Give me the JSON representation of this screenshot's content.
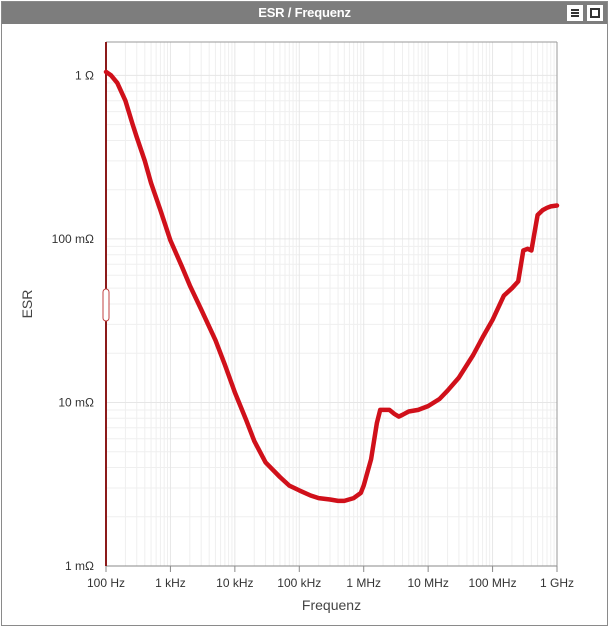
{
  "window": {
    "title": "ESR / Frequenz",
    "menu_icon": "hamburger-menu-icon",
    "maximize_icon": "maximize-icon"
  },
  "colors": {
    "titlebar": "#7d7d7d",
    "series": "#d0101a",
    "grid": "#e6e6e6",
    "axis": "#8a8a8a"
  },
  "chart_data": {
    "type": "line",
    "title": "ESR / Frequenz",
    "xlabel": "Frequenz",
    "ylabel": "ESR",
    "x_scale": "log",
    "y_scale": "log",
    "xlim": [
      100,
      1000000000
    ],
    "ylim": [
      0.001,
      1.6
    ],
    "grid": true,
    "x_ticks": [
      {
        "value": 100,
        "label": "100 Hz"
      },
      {
        "value": 1000,
        "label": "1 kHz"
      },
      {
        "value": 10000,
        "label": "10 kHz"
      },
      {
        "value": 100000,
        "label": "100 kHz"
      },
      {
        "value": 1000000,
        "label": "1 MHz"
      },
      {
        "value": 10000000,
        "label": "10 MHz"
      },
      {
        "value": 100000000,
        "label": "100 MHz"
      },
      {
        "value": 1000000000,
        "label": "1 GHz"
      }
    ],
    "y_ticks": [
      {
        "value": 1,
        "label": "1 Ω"
      },
      {
        "value": 0.1,
        "label": "100 mΩ"
      },
      {
        "value": 0.01,
        "label": "10 mΩ"
      },
      {
        "value": 0.001,
        "label": "1 mΩ"
      }
    ],
    "series": [
      {
        "color": "#d0101a",
        "x": [
          100,
          120,
          150,
          200,
          260,
          300,
          400,
          500,
          700,
          1000,
          1500,
          2000,
          3000,
          5000,
          7000,
          10000,
          15000,
          20000,
          30000,
          50000,
          70000,
          100000,
          150000,
          200000,
          300000,
          400000,
          500000,
          700000,
          900000,
          1000000,
          1300000,
          1600000,
          1800000,
          2000000,
          2500000,
          3000000,
          3500000,
          4000000,
          5000000,
          7000000,
          10000000,
          15000000,
          20000000,
          30000000,
          50000000,
          70000000,
          100000000,
          150000000,
          200000000,
          250000000,
          300000000,
          350000000,
          400000000,
          500000000,
          600000000,
          700000000,
          800000000,
          1000000000
        ],
        "y": [
          1.05,
          1.0,
          0.9,
          0.7,
          0.5,
          0.42,
          0.3,
          0.22,
          0.15,
          0.098,
          0.068,
          0.052,
          0.037,
          0.024,
          0.017,
          0.0115,
          0.0078,
          0.0058,
          0.0043,
          0.0035,
          0.0031,
          0.0029,
          0.0027,
          0.0026,
          0.00255,
          0.0025,
          0.0025,
          0.0026,
          0.0028,
          0.0031,
          0.0045,
          0.0075,
          0.009,
          0.009,
          0.009,
          0.0085,
          0.0082,
          0.0084,
          0.0088,
          0.009,
          0.0095,
          0.0105,
          0.0118,
          0.0142,
          0.0195,
          0.025,
          0.032,
          0.045,
          0.05,
          0.055,
          0.085,
          0.087,
          0.085,
          0.14,
          0.15,
          0.155,
          0.158,
          0.16
        ]
      }
    ]
  }
}
